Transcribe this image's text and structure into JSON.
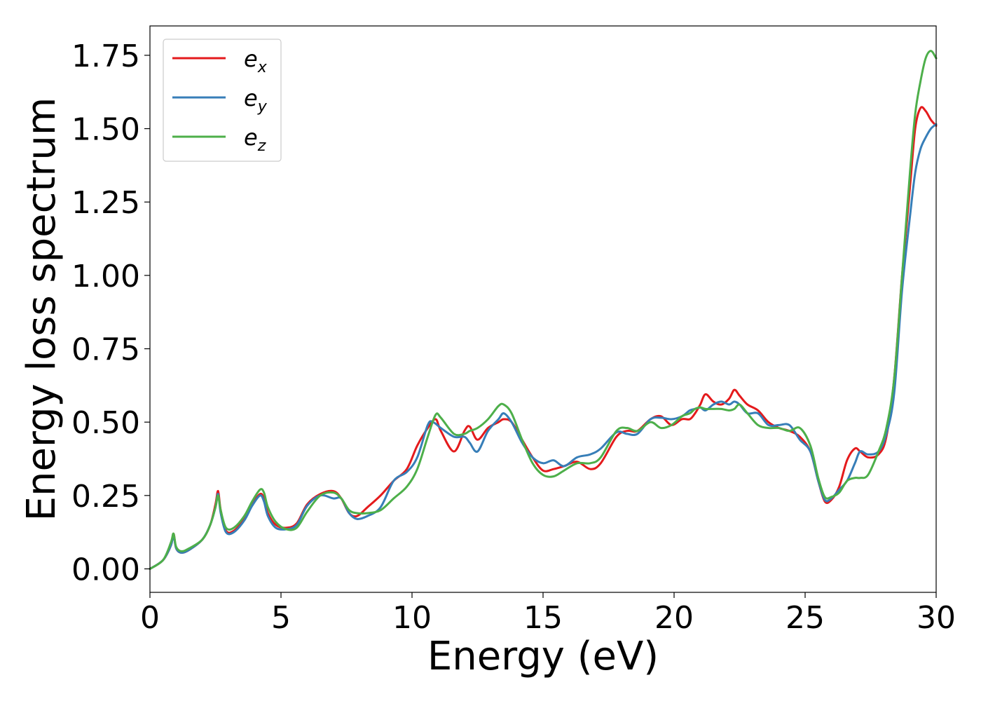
{
  "chart_data": {
    "type": "line",
    "title": "",
    "xlabel": "Energy (eV)",
    "ylabel": "Energy loss spectrum",
    "xlim": [
      0,
      30
    ],
    "ylim": [
      -0.08,
      1.85
    ],
    "xticks": [
      0,
      5,
      10,
      15,
      20,
      25,
      30
    ],
    "xtick_labels": [
      "0",
      "5",
      "10",
      "15",
      "20",
      "25",
      "30"
    ],
    "yticks": [
      0.0,
      0.25,
      0.5,
      0.75,
      1.0,
      1.25,
      1.5,
      1.75
    ],
    "ytick_labels": [
      "0.00",
      "0.25",
      "0.50",
      "0.75",
      "1.00",
      "1.25",
      "1.50",
      "1.75"
    ],
    "grid": false,
    "legend_position": "top-left",
    "series": [
      {
        "name": "e_x",
        "label_base": "e",
        "label_sub": "x",
        "color": "#e41a1c",
        "x": [
          0,
          0.5,
          0.8,
          0.9,
          1.0,
          1.2,
          1.5,
          2.0,
          2.3,
          2.5,
          2.6,
          2.7,
          2.9,
          3.2,
          3.6,
          3.9,
          4.2,
          4.35,
          4.5,
          4.8,
          5.2,
          5.6,
          6.0,
          6.5,
          7.0,
          7.3,
          7.6,
          7.9,
          8.3,
          8.8,
          9.3,
          9.8,
          10.2,
          10.6,
          10.9,
          11.1,
          11.6,
          12.0,
          12.2,
          12.5,
          12.9,
          13.3,
          13.5,
          13.8,
          14.2,
          14.6,
          15.0,
          15.4,
          15.8,
          16.3,
          16.8,
          17.2,
          17.8,
          18.2,
          18.6,
          19.1,
          19.5,
          19.9,
          20.3,
          20.6,
          20.8,
          21.0,
          21.2,
          21.5,
          21.8,
          22.1,
          22.3,
          22.5,
          22.8,
          23.2,
          23.6,
          24.0,
          24.4,
          24.8,
          25.2,
          25.5,
          25.75,
          26.0,
          26.3,
          26.6,
          26.9,
          27.1,
          27.4,
          27.8,
          28.1,
          28.4,
          28.7,
          29.0,
          29.2,
          29.4,
          29.6,
          29.8,
          30.0
        ],
        "y": [
          0.0,
          0.03,
          0.08,
          0.12,
          0.07,
          0.055,
          0.065,
          0.1,
          0.15,
          0.22,
          0.265,
          0.2,
          0.13,
          0.13,
          0.17,
          0.22,
          0.255,
          0.24,
          0.19,
          0.15,
          0.14,
          0.155,
          0.22,
          0.255,
          0.265,
          0.24,
          0.19,
          0.18,
          0.21,
          0.25,
          0.3,
          0.34,
          0.42,
          0.48,
          0.51,
          0.47,
          0.4,
          0.47,
          0.485,
          0.44,
          0.48,
          0.5,
          0.51,
          0.5,
          0.44,
          0.38,
          0.335,
          0.34,
          0.35,
          0.365,
          0.34,
          0.36,
          0.45,
          0.47,
          0.47,
          0.51,
          0.52,
          0.49,
          0.51,
          0.51,
          0.53,
          0.56,
          0.595,
          0.57,
          0.56,
          0.58,
          0.61,
          0.59,
          0.56,
          0.54,
          0.5,
          0.48,
          0.47,
          0.45,
          0.4,
          0.3,
          0.23,
          0.235,
          0.28,
          0.37,
          0.41,
          0.4,
          0.38,
          0.39,
          0.45,
          0.65,
          1.0,
          1.3,
          1.5,
          1.57,
          1.56,
          1.53,
          1.51
        ]
      },
      {
        "name": "e_y",
        "label_base": "e",
        "label_sub": "y",
        "color": "#377eb8",
        "x": [
          0,
          0.5,
          0.8,
          0.9,
          1.0,
          1.2,
          1.5,
          2.0,
          2.3,
          2.5,
          2.6,
          2.7,
          2.9,
          3.2,
          3.6,
          3.9,
          4.2,
          4.35,
          4.5,
          4.8,
          5.2,
          5.6,
          6.0,
          6.5,
          7.0,
          7.3,
          7.6,
          7.9,
          8.3,
          8.8,
          9.3,
          9.8,
          10.2,
          10.6,
          10.8,
          11.1,
          11.6,
          12.0,
          12.2,
          12.5,
          12.9,
          13.3,
          13.5,
          13.8,
          14.2,
          14.6,
          15.0,
          15.4,
          15.8,
          16.3,
          16.8,
          17.2,
          17.8,
          18.2,
          18.6,
          19.1,
          19.5,
          19.9,
          20.3,
          20.6,
          20.8,
          21.0,
          21.2,
          21.5,
          21.8,
          22.1,
          22.3,
          22.5,
          22.8,
          23.2,
          23.6,
          24.0,
          24.4,
          24.8,
          25.2,
          25.5,
          25.75,
          26.0,
          26.3,
          26.6,
          26.9,
          27.1,
          27.4,
          27.8,
          28.1,
          28.4,
          28.7,
          29.0,
          29.2,
          29.4,
          29.6,
          29.8,
          30.0
        ],
        "y": [
          0.0,
          0.03,
          0.08,
          0.115,
          0.07,
          0.055,
          0.065,
          0.1,
          0.15,
          0.21,
          0.255,
          0.19,
          0.125,
          0.125,
          0.165,
          0.215,
          0.25,
          0.23,
          0.18,
          0.14,
          0.135,
          0.15,
          0.215,
          0.25,
          0.24,
          0.24,
          0.19,
          0.17,
          0.18,
          0.21,
          0.3,
          0.33,
          0.38,
          0.49,
          0.5,
          0.48,
          0.45,
          0.45,
          0.43,
          0.4,
          0.47,
          0.51,
          0.53,
          0.5,
          0.43,
          0.38,
          0.36,
          0.37,
          0.35,
          0.38,
          0.39,
          0.41,
          0.465,
          0.46,
          0.46,
          0.51,
          0.515,
          0.51,
          0.52,
          0.54,
          0.545,
          0.55,
          0.54,
          0.56,
          0.57,
          0.56,
          0.57,
          0.56,
          0.53,
          0.53,
          0.49,
          0.49,
          0.49,
          0.44,
          0.4,
          0.3,
          0.235,
          0.24,
          0.27,
          0.3,
          0.36,
          0.4,
          0.39,
          0.4,
          0.46,
          0.6,
          0.95,
          1.2,
          1.35,
          1.43,
          1.47,
          1.5,
          1.515
        ]
      },
      {
        "name": "e_z",
        "label_base": "e",
        "label_sub": "z",
        "color": "#4daf4a",
        "x": [
          0,
          0.5,
          0.8,
          0.9,
          1.0,
          1.2,
          1.5,
          2.0,
          2.3,
          2.5,
          2.6,
          2.7,
          2.9,
          3.2,
          3.6,
          3.9,
          4.2,
          4.35,
          4.5,
          4.8,
          5.2,
          5.6,
          6.0,
          6.5,
          7.0,
          7.3,
          7.6,
          7.9,
          8.3,
          8.8,
          9.3,
          9.8,
          10.2,
          10.6,
          10.9,
          11.1,
          11.6,
          12.0,
          12.2,
          12.5,
          12.9,
          13.3,
          13.5,
          13.8,
          14.2,
          14.6,
          15.0,
          15.4,
          15.8,
          16.3,
          16.8,
          17.2,
          17.8,
          18.2,
          18.6,
          19.1,
          19.5,
          19.9,
          20.3,
          20.6,
          20.8,
          21.0,
          21.2,
          21.5,
          21.8,
          22.1,
          22.3,
          22.5,
          22.8,
          23.2,
          23.6,
          24.0,
          24.4,
          24.8,
          25.2,
          25.5,
          25.75,
          26.0,
          26.3,
          26.6,
          26.9,
          27.1,
          27.4,
          27.8,
          28.1,
          28.4,
          28.7,
          29.0,
          29.2,
          29.4,
          29.6,
          29.8,
          30.0
        ],
        "y": [
          0.0,
          0.03,
          0.09,
          0.12,
          0.075,
          0.06,
          0.07,
          0.1,
          0.15,
          0.21,
          0.25,
          0.2,
          0.14,
          0.14,
          0.18,
          0.23,
          0.27,
          0.26,
          0.21,
          0.16,
          0.135,
          0.14,
          0.195,
          0.25,
          0.26,
          0.24,
          0.2,
          0.19,
          0.19,
          0.2,
          0.24,
          0.28,
          0.34,
          0.45,
          0.525,
          0.515,
          0.46,
          0.46,
          0.47,
          0.48,
          0.51,
          0.555,
          0.56,
          0.53,
          0.44,
          0.36,
          0.32,
          0.315,
          0.335,
          0.36,
          0.36,
          0.38,
          0.47,
          0.48,
          0.47,
          0.5,
          0.48,
          0.49,
          0.52,
          0.53,
          0.545,
          0.55,
          0.545,
          0.545,
          0.545,
          0.54,
          0.545,
          0.56,
          0.53,
          0.49,
          0.48,
          0.48,
          0.47,
          0.48,
          0.42,
          0.31,
          0.245,
          0.245,
          0.26,
          0.3,
          0.31,
          0.31,
          0.32,
          0.4,
          0.48,
          0.65,
          1.0,
          1.35,
          1.55,
          1.66,
          1.74,
          1.765,
          1.74
        ]
      }
    ]
  }
}
